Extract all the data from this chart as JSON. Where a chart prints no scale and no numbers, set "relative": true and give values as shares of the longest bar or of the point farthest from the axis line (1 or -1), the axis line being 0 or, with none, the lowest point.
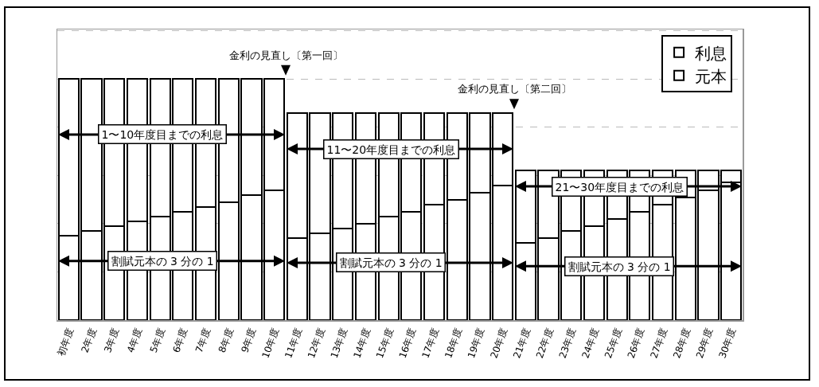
{
  "chart_data": {
    "type": "bar",
    "stacked": true,
    "relative": true,
    "grid": "y",
    "legend": "top right",
    "categories": [
      "初年度",
      "2年度",
      "3年度",
      "4年度",
      "5年度",
      "6年度",
      "7年度",
      "8年度",
      "9年度",
      "10年度",
      "11年度",
      "12年度",
      "13年度",
      "14年度",
      "15年度",
      "16年度",
      "17年度",
      "18年度",
      "19年度",
      "20年度",
      "21年度",
      "22年度",
      "23年度",
      "24年度",
      "25年度",
      "26年度",
      "27年度",
      "28年度",
      "29年度",
      "30年度"
    ],
    "series": [
      {
        "name": "元本",
        "color": "#ffffff",
        "values": [
          0.35,
          0.37,
          0.39,
          0.41,
          0.43,
          0.45,
          0.47,
          0.49,
          0.52,
          0.54,
          0.34,
          0.36,
          0.38,
          0.4,
          0.43,
          0.45,
          0.48,
          0.5,
          0.53,
          0.56,
          0.32,
          0.34,
          0.37,
          0.39,
          0.42,
          0.45,
          0.48,
          0.51,
          0.54,
          0.57
        ]
      },
      {
        "name": "利息",
        "color": "#ffffff",
        "values": [
          0.65,
          0.63,
          0.61,
          0.59,
          0.57,
          0.55,
          0.53,
          0.51,
          0.48,
          0.46,
          0.52,
          0.5,
          0.48,
          0.46,
          0.43,
          0.41,
          0.38,
          0.36,
          0.33,
          0.3,
          0.3,
          0.28,
          0.25,
          0.23,
          0.2,
          0.17,
          0.14,
          0.11,
          0.08,
          0.05
        ]
      }
    ],
    "annotations": [
      "金利の見直し〔第一回〕",
      "金利の見直し〔第二回〕",
      "1〜10年度目までの利息",
      "割賦元本の 3 分の 1",
      "11〜20年度目までの利息",
      "割賦元本の 3 分の 1",
      "21〜30年度目までの利息",
      "割賦元本の 3 分の 1"
    ]
  }
}
